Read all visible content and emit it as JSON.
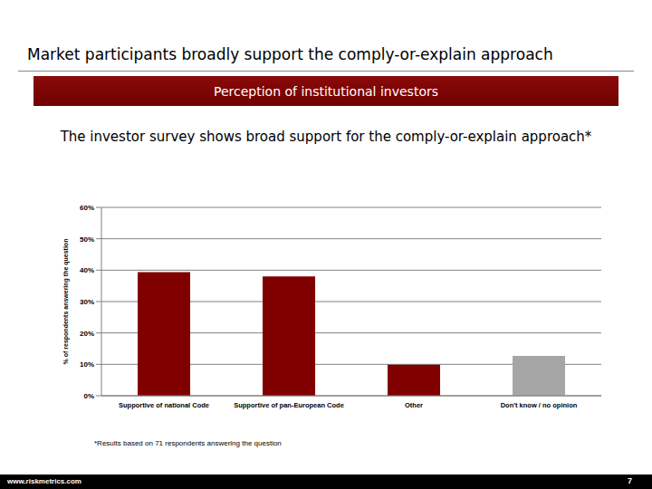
{
  "slide": {
    "heading": "Market participants broadly support the comply-or-explain approach",
    "banner": "Perception of institutional investors",
    "footnote": "*Results based on 71 respondents answering the question",
    "url": "www.riskmetrics.com",
    "page_number": 7
  },
  "chart_data": {
    "type": "bar",
    "title": "The investor survey shows broad support for the comply-or-explain approach*",
    "categories": [
      "Supportive of national Code",
      "Supportive of pan-European Code",
      "Other",
      "Don't know / no opinion"
    ],
    "values": [
      39.4,
      38,
      9.9,
      12.7
    ],
    "colors": [
      "#800000",
      "#800000",
      "#800000",
      "#a6a6a6"
    ],
    "ylabel": "% of respondents answering the question",
    "ylim": [
      0,
      60
    ],
    "yticks": [
      {
        "value": 0,
        "label": "0%"
      },
      {
        "value": 10,
        "label": "10%"
      },
      {
        "value": 20,
        "label": "20%"
      },
      {
        "value": 30,
        "label": "30%"
      },
      {
        "value": 40,
        "label": "40%"
      },
      {
        "value": 50,
        "label": "50%"
      },
      {
        "value": 60,
        "label": "60%"
      }
    ],
    "grid": true
  }
}
